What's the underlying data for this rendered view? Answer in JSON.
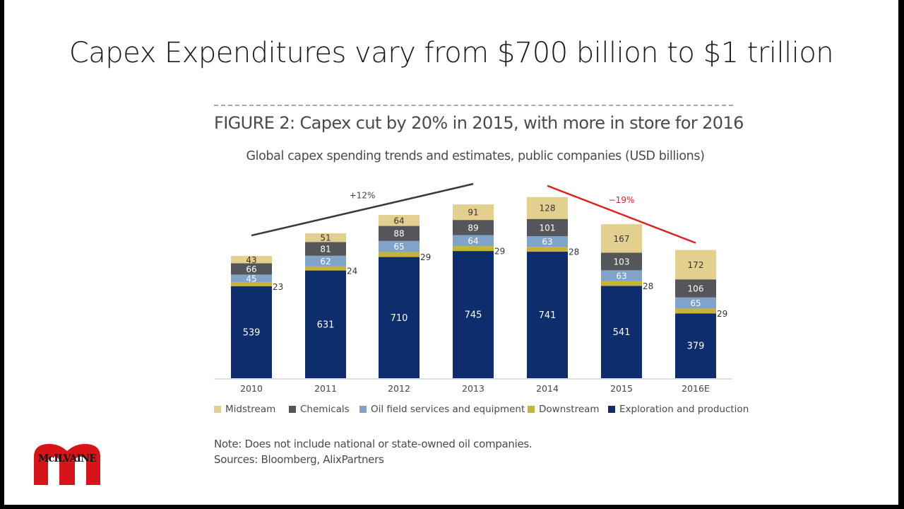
{
  "slide": {
    "title": "Capex Expenditures vary from $700 billion to $1 trillion",
    "logo_text": "McILVAINE"
  },
  "figure": {
    "title": "FIGURE 2: Capex cut by 20% in 2015, with more in store for 2016",
    "subtitle": "Global capex spending trends and estimates, public companies (USD billions)",
    "note": "Note: Does not include national or state-owned oil companies.",
    "sources": "Sources: Bloomberg, AlixPartners"
  },
  "colors": {
    "midstream": "#e3d08f",
    "chemicals": "#555659",
    "oilfield": "#7fa3c9",
    "downstream": "#c6b33a",
    "exploration": "#0e2d6c",
    "trend_up": "#3a3a3a",
    "trend_down": "#e02020",
    "label_light": "#ffffff",
    "label_dark": "#333333"
  },
  "chart_data": {
    "type": "bar",
    "stacked": true,
    "categories": [
      "2010",
      "2011",
      "2012",
      "2013",
      "2014",
      "2015",
      "2016E"
    ],
    "series": [
      {
        "name": "Exploration and production",
        "key": "exploration",
        "values": [
          539,
          631,
          710,
          745,
          741,
          541,
          379
        ]
      },
      {
        "name": "Downstream",
        "key": "downstream",
        "values": [
          23,
          24,
          29,
          29,
          28,
          28,
          29
        ]
      },
      {
        "name": "Oil field services and equipment",
        "key": "oilfield",
        "values": [
          45,
          62,
          65,
          64,
          63,
          63,
          65
        ]
      },
      {
        "name": "Chemicals",
        "key": "chemicals",
        "values": [
          66,
          81,
          88,
          89,
          101,
          103,
          106
        ]
      },
      {
        "name": "Midstream",
        "key": "midstream",
        "values": [
          43,
          51,
          64,
          91,
          128,
          167,
          172
        ]
      }
    ],
    "legend_order": [
      "midstream",
      "chemicals",
      "oilfield",
      "downstream",
      "exploration"
    ],
    "legend_position": "bottom",
    "annotations": [
      {
        "text": "+12%",
        "from_category": "2010",
        "to_category": "2013",
        "direction": "up"
      },
      {
        "text": "−19%",
        "from_category": "2014",
        "to_category": "2016E",
        "direction": "down"
      }
    ],
    "ylim": [
      0,
      1100
    ],
    "grid": false,
    "xlabel": "",
    "ylabel": ""
  }
}
